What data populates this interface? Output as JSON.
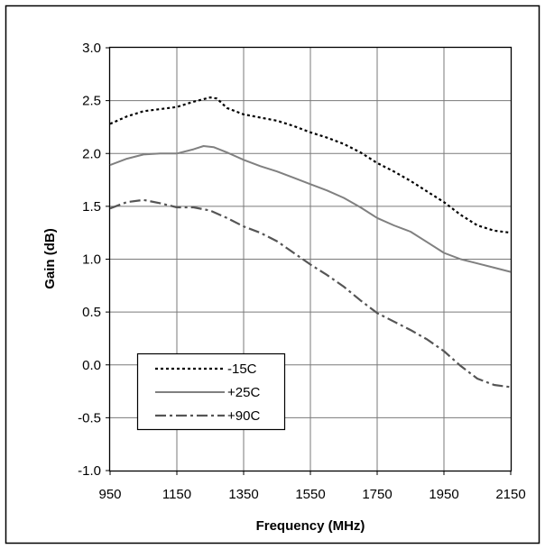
{
  "chart_data": {
    "type": "line",
    "title": "",
    "xlabel": "Frequency (MHz)",
    "ylabel": "Gain (dB)",
    "xlim": [
      950,
      2150
    ],
    "ylim": [
      -1.0,
      3.0
    ],
    "x_ticks": [
      950,
      1150,
      1350,
      1550,
      1750,
      1950,
      2150
    ],
    "y_ticks": [
      -1.0,
      -0.5,
      0.0,
      0.5,
      1.0,
      1.5,
      2.0,
      2.5,
      3.0
    ],
    "x_tick_labels": [
      "950",
      "1150",
      "1350",
      "1550",
      "1750",
      "1950",
      "2150"
    ],
    "y_tick_labels": [
      "-1.0",
      "-0.5",
      "0.0",
      "0.5",
      "1.0",
      "1.5",
      "2.0",
      "2.5",
      "3.0"
    ],
    "grid": true,
    "legend_position": "bottom-left",
    "series": [
      {
        "name": "-15C",
        "style": "dotted",
        "color": "#000000",
        "x": [
          950,
          1000,
          1050,
          1100,
          1150,
          1200,
          1250,
          1270,
          1300,
          1350,
          1400,
          1450,
          1500,
          1550,
          1600,
          1650,
          1700,
          1750,
          1800,
          1850,
          1900,
          1950,
          2000,
          2050,
          2100,
          2150
        ],
        "y": [
          2.28,
          2.35,
          2.4,
          2.42,
          2.44,
          2.49,
          2.53,
          2.52,
          2.43,
          2.37,
          2.34,
          2.31,
          2.26,
          2.2,
          2.15,
          2.09,
          2.01,
          1.91,
          1.83,
          1.74,
          1.64,
          1.54,
          1.42,
          1.32,
          1.27,
          1.25
        ]
      },
      {
        "name": "+25C",
        "style": "solid",
        "color": "#808080",
        "x": [
          950,
          1000,
          1050,
          1100,
          1150,
          1200,
          1230,
          1260,
          1300,
          1350,
          1400,
          1450,
          1500,
          1550,
          1600,
          1650,
          1700,
          1750,
          1800,
          1850,
          1900,
          1950,
          2000,
          2050,
          2100,
          2150
        ],
        "y": [
          1.89,
          1.95,
          1.99,
          2.0,
          2.0,
          2.04,
          2.07,
          2.06,
          2.01,
          1.94,
          1.88,
          1.83,
          1.77,
          1.71,
          1.65,
          1.58,
          1.49,
          1.39,
          1.32,
          1.26,
          1.16,
          1.06,
          1.0,
          0.96,
          0.92,
          0.88
        ]
      },
      {
        "name": "+90C",
        "style": "dash-dot",
        "color": "#555555",
        "x": [
          950,
          1000,
          1050,
          1100,
          1150,
          1200,
          1250,
          1300,
          1350,
          1400,
          1450,
          1500,
          1550,
          1600,
          1650,
          1700,
          1750,
          1800,
          1850,
          1900,
          1950,
          2000,
          2050,
          2100,
          2150
        ],
        "y": [
          1.48,
          1.54,
          1.56,
          1.53,
          1.49,
          1.49,
          1.46,
          1.39,
          1.31,
          1.25,
          1.17,
          1.06,
          0.95,
          0.85,
          0.74,
          0.61,
          0.49,
          0.41,
          0.33,
          0.24,
          0.13,
          -0.01,
          -0.13,
          -0.19,
          -0.21
        ]
      }
    ]
  }
}
